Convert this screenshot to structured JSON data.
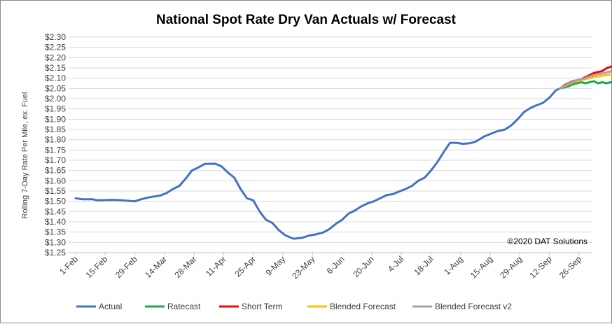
{
  "chart_data": {
    "type": "line",
    "title": "National Spot Rate Dry Van Actuals w/ Forecast",
    "ylabel": "Rolling 7-Day Rate Per Mile, ex. Fuel",
    "xlabel": "",
    "ylim": [
      1.25,
      2.3
    ],
    "y_ticks": [
      "$1.25",
      "$1.30",
      "$1.35",
      "$1.40",
      "$1.45",
      "$1.50",
      "$1.55",
      "$1.60",
      "$1.65",
      "$1.70",
      "$1.75",
      "$1.80",
      "$1.85",
      "$1.90",
      "$1.95",
      "$2.00",
      "$2.05",
      "$2.10",
      "$2.15",
      "$2.20",
      "$2.25",
      "$2.30"
    ],
    "x_ticks": [
      "1-Feb",
      "15-Feb",
      "29-Feb",
      "14-Mar",
      "28-Mar",
      "11-Apr",
      "25-Apr",
      "9-May",
      "23-May",
      "6-Jun",
      "20-Jun",
      "4-Jul",
      "18-Jul",
      "1-Aug",
      "15-Aug",
      "29-Aug",
      "12-Sep",
      "26-Sep"
    ],
    "x_range_days": [
      0,
      241
    ],
    "grid": true,
    "legend_position": "bottom",
    "annotation": "©2020 DAT Solutions",
    "series": [
      {
        "name": "Actual",
        "color": "#4472c4",
        "points": [
          [
            0,
            1.515
          ],
          [
            3,
            1.51
          ],
          [
            8,
            1.51
          ],
          [
            10,
            1.505
          ],
          [
            18,
            1.507
          ],
          [
            22,
            1.505
          ],
          [
            28,
            1.5
          ],
          [
            31,
            1.51
          ],
          [
            35,
            1.52
          ],
          [
            40,
            1.528
          ],
          [
            43,
            1.54
          ],
          [
            46,
            1.56
          ],
          [
            49,
            1.575
          ],
          [
            52,
            1.61
          ],
          [
            55,
            1.65
          ],
          [
            58,
            1.665
          ],
          [
            61,
            1.682
          ],
          [
            66,
            1.683
          ],
          [
            69,
            1.67
          ],
          [
            72,
            1.64
          ],
          [
            75,
            1.615
          ],
          [
            78,
            1.56
          ],
          [
            81,
            1.515
          ],
          [
            84,
            1.505
          ],
          [
            87,
            1.45
          ],
          [
            90,
            1.41
          ],
          [
            93,
            1.395
          ],
          [
            96,
            1.36
          ],
          [
            99,
            1.335
          ],
          [
            103,
            1.318
          ],
          [
            107,
            1.322
          ],
          [
            110,
            1.332
          ],
          [
            114,
            1.34
          ],
          [
            117,
            1.348
          ],
          [
            120,
            1.365
          ],
          [
            123,
            1.39
          ],
          [
            126,
            1.41
          ],
          [
            129,
            1.44
          ],
          [
            132,
            1.455
          ],
          [
            135,
            1.475
          ],
          [
            138,
            1.49
          ],
          [
            141,
            1.5
          ],
          [
            144,
            1.515
          ],
          [
            147,
            1.53
          ],
          [
            150,
            1.535
          ],
          [
            153,
            1.548
          ],
          [
            156,
            1.56
          ],
          [
            159,
            1.575
          ],
          [
            162,
            1.6
          ],
          [
            165,
            1.615
          ],
          [
            168,
            1.65
          ],
          [
            171,
            1.69
          ],
          [
            174,
            1.74
          ],
          [
            177,
            1.785
          ],
          [
            180,
            1.785
          ],
          [
            183,
            1.78
          ],
          [
            186,
            1.782
          ],
          [
            189,
            1.79
          ],
          [
            193,
            1.815
          ],
          [
            196,
            1.828
          ],
          [
            199,
            1.84
          ],
          [
            203,
            1.85
          ],
          [
            206,
            1.87
          ],
          [
            209,
            1.9
          ],
          [
            212,
            1.935
          ],
          [
            215,
            1.955
          ],
          [
            218,
            1.968
          ],
          [
            221,
            1.98
          ],
          [
            224,
            2.005
          ],
          [
            227,
            2.04
          ],
          [
            229,
            2.05
          ]
        ]
      },
      {
        "name": "Ratecast",
        "color": "#1faa48",
        "points": [
          [
            229,
            2.05
          ],
          [
            231,
            2.055
          ],
          [
            233,
            2.06
          ],
          [
            235,
            2.07
          ],
          [
            237,
            2.075
          ],
          [
            239,
            2.08
          ],
          [
            241,
            2.075
          ],
          [
            243,
            2.08
          ],
          [
            245,
            2.085
          ],
          [
            247,
            2.075
          ],
          [
            249,
            2.08
          ],
          [
            251,
            2.075
          ],
          [
            253,
            2.08
          ],
          [
            255,
            2.075
          ],
          [
            257,
            2.085
          ],
          [
            259,
            2.078
          ],
          [
            261,
            2.085
          ],
          [
            263,
            2.08
          ],
          [
            265,
            2.09
          ],
          [
            267,
            2.09
          ]
        ]
      },
      {
        "name": "Short Term",
        "color": "#ff0000",
        "points": [
          [
            229,
            2.05
          ],
          [
            231,
            2.065
          ],
          [
            233,
            2.075
          ],
          [
            235,
            2.085
          ],
          [
            237,
            2.09
          ],
          [
            239,
            2.095
          ],
          [
            241,
            2.105
          ],
          [
            243,
            2.115
          ],
          [
            245,
            2.125
          ],
          [
            247,
            2.13
          ],
          [
            249,
            2.135
          ],
          [
            251,
            2.148
          ],
          [
            253,
            2.155
          ],
          [
            255,
            2.165
          ],
          [
            257,
            2.172
          ],
          [
            259,
            2.18
          ],
          [
            261,
            2.2
          ],
          [
            263,
            2.21
          ],
          [
            265,
            2.225
          ],
          [
            267,
            2.245
          ]
        ]
      },
      {
        "name": "Blended Forecast",
        "color": "#ffc000",
        "points": [
          [
            229,
            2.05
          ],
          [
            231,
            2.06
          ],
          [
            233,
            2.07
          ],
          [
            235,
            2.08
          ],
          [
            237,
            2.085
          ],
          [
            239,
            2.09
          ],
          [
            241,
            2.095
          ],
          [
            243,
            2.1
          ],
          [
            245,
            2.105
          ],
          [
            247,
            2.108
          ],
          [
            249,
            2.112
          ],
          [
            251,
            2.115
          ],
          [
            253,
            2.118
          ],
          [
            255,
            2.122
          ],
          [
            257,
            2.125
          ],
          [
            259,
            2.13
          ],
          [
            261,
            2.135
          ],
          [
            263,
            2.14
          ],
          [
            265,
            2.145
          ],
          [
            267,
            2.15
          ]
        ]
      },
      {
        "name": "Blended Forecast v2",
        "color": "#a5a5a5",
        "points": [
          [
            229,
            2.05
          ],
          [
            231,
            2.062
          ],
          [
            233,
            2.072
          ],
          [
            235,
            2.082
          ],
          [
            237,
            2.09
          ],
          [
            239,
            2.095
          ],
          [
            241,
            2.1
          ],
          [
            243,
            2.108
          ],
          [
            245,
            2.115
          ],
          [
            247,
            2.12
          ],
          [
            249,
            2.123
          ],
          [
            251,
            2.128
          ],
          [
            253,
            2.133
          ],
          [
            255,
            2.138
          ],
          [
            257,
            2.142
          ],
          [
            259,
            2.15
          ],
          [
            261,
            2.155
          ],
          [
            263,
            2.158
          ],
          [
            265,
            2.165
          ],
          [
            267,
            2.17
          ]
        ]
      }
    ]
  }
}
